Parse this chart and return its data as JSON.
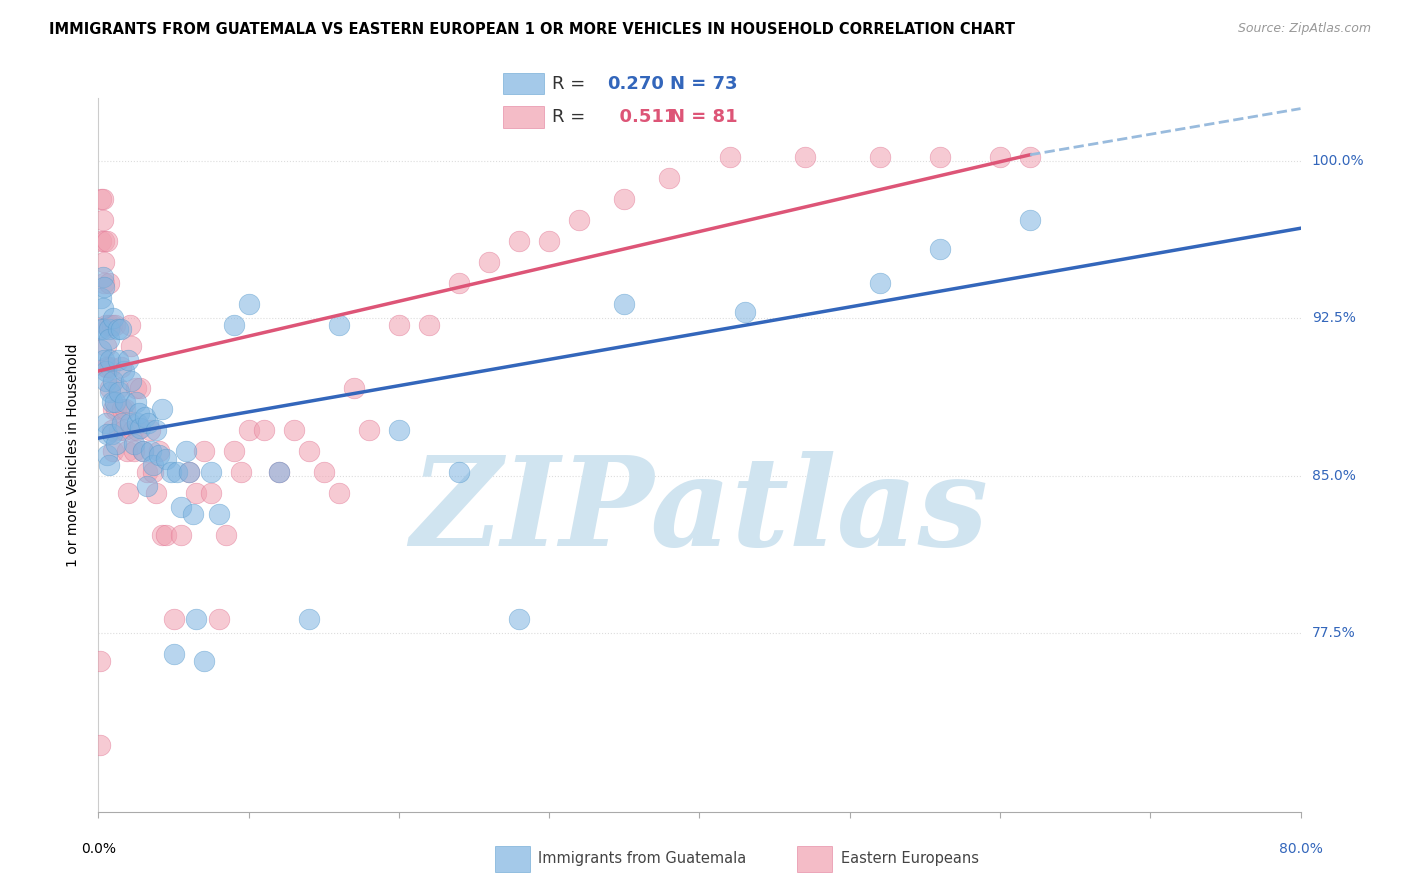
{
  "title": "IMMIGRANTS FROM GUATEMALA VS EASTERN EUROPEAN 1 OR MORE VEHICLES IN HOUSEHOLD CORRELATION CHART",
  "source": "Source: ZipAtlas.com",
  "ylabel": "1 or more Vehicles in Household",
  "xlim": [
    0.0,
    0.8
  ],
  "ylim": [
    0.69,
    1.03
  ],
  "blue_R": 0.27,
  "blue_N": 73,
  "pink_R": 0.511,
  "pink_N": 81,
  "blue_color": "#7EB3E0",
  "pink_color": "#F0A0B0",
  "blue_edge_color": "#5599CC",
  "pink_edge_color": "#E07090",
  "blue_trend_color": "#3366BB",
  "pink_trend_color": "#DD5577",
  "dashed_color": "#99BBDD",
  "blue_label": "Immigrants from Guatemala",
  "pink_label": "Eastern Europeans",
  "watermark": "ZIPatlas",
  "watermark_color": "#D0E4F0",
  "ytick_positions": [
    0.775,
    0.85,
    0.925,
    1.0
  ],
  "ytick_labels": [
    "77.5%",
    "85.0%",
    "92.5%",
    "100.0%"
  ],
  "xtick_positions": [
    0.0,
    0.1,
    0.2,
    0.3,
    0.4,
    0.5,
    0.6,
    0.7,
    0.8
  ],
  "blue_scatter_x": [
    0.001,
    0.002,
    0.002,
    0.003,
    0.003,
    0.003,
    0.004,
    0.004,
    0.005,
    0.005,
    0.005,
    0.006,
    0.006,
    0.007,
    0.007,
    0.007,
    0.008,
    0.008,
    0.009,
    0.009,
    0.01,
    0.01,
    0.011,
    0.012,
    0.013,
    0.013,
    0.014,
    0.015,
    0.016,
    0.017,
    0.018,
    0.02,
    0.021,
    0.022,
    0.024,
    0.025,
    0.026,
    0.027,
    0.028,
    0.03,
    0.031,
    0.032,
    0.033,
    0.035,
    0.036,
    0.038,
    0.04,
    0.042,
    0.045,
    0.048,
    0.05,
    0.052,
    0.055,
    0.058,
    0.06,
    0.063,
    0.065,
    0.07,
    0.075,
    0.08,
    0.09,
    0.1,
    0.12,
    0.14,
    0.16,
    0.2,
    0.24,
    0.28,
    0.35,
    0.43,
    0.52,
    0.56,
    0.62
  ],
  "blue_scatter_y": [
    0.92,
    0.935,
    0.91,
    0.945,
    0.93,
    0.92,
    0.94,
    0.905,
    0.9,
    0.895,
    0.875,
    0.87,
    0.86,
    0.92,
    0.915,
    0.855,
    0.905,
    0.89,
    0.885,
    0.87,
    0.925,
    0.895,
    0.885,
    0.865,
    0.92,
    0.905,
    0.89,
    0.92,
    0.875,
    0.9,
    0.885,
    0.905,
    0.875,
    0.895,
    0.865,
    0.885,
    0.875,
    0.88,
    0.873,
    0.862,
    0.878,
    0.845,
    0.875,
    0.862,
    0.855,
    0.872,
    0.86,
    0.882,
    0.858,
    0.852,
    0.765,
    0.852,
    0.835,
    0.862,
    0.852,
    0.832,
    0.782,
    0.762,
    0.852,
    0.832,
    0.922,
    0.932,
    0.852,
    0.782,
    0.922,
    0.872,
    0.852,
    0.782,
    0.932,
    0.928,
    0.942,
    0.958,
    0.972
  ],
  "pink_scatter_x": [
    0.001,
    0.001,
    0.002,
    0.002,
    0.003,
    0.003,
    0.004,
    0.004,
    0.004,
    0.005,
    0.005,
    0.005,
    0.006,
    0.006,
    0.007,
    0.007,
    0.008,
    0.008,
    0.009,
    0.009,
    0.01,
    0.01,
    0.011,
    0.012,
    0.013,
    0.014,
    0.015,
    0.016,
    0.017,
    0.018,
    0.019,
    0.02,
    0.021,
    0.022,
    0.023,
    0.024,
    0.025,
    0.026,
    0.028,
    0.03,
    0.032,
    0.034,
    0.036,
    0.038,
    0.04,
    0.042,
    0.045,
    0.05,
    0.055,
    0.06,
    0.065,
    0.07,
    0.075,
    0.08,
    0.085,
    0.09,
    0.095,
    0.1,
    0.11,
    0.12,
    0.13,
    0.14,
    0.15,
    0.16,
    0.17,
    0.18,
    0.2,
    0.22,
    0.24,
    0.26,
    0.28,
    0.3,
    0.32,
    0.35,
    0.38,
    0.42,
    0.47,
    0.52,
    0.56,
    0.6,
    0.62
  ],
  "pink_scatter_y": [
    0.722,
    0.762,
    0.962,
    0.982,
    0.972,
    0.982,
    0.962,
    0.952,
    0.942,
    0.922,
    0.912,
    0.902,
    0.962,
    0.902,
    0.942,
    0.922,
    0.892,
    0.902,
    0.922,
    0.872,
    0.882,
    0.862,
    0.922,
    0.882,
    0.892,
    0.872,
    0.902,
    0.882,
    0.872,
    0.882,
    0.862,
    0.842,
    0.922,
    0.912,
    0.872,
    0.862,
    0.892,
    0.872,
    0.892,
    0.862,
    0.852,
    0.872,
    0.852,
    0.842,
    0.862,
    0.822,
    0.822,
    0.782,
    0.822,
    0.852,
    0.842,
    0.862,
    0.842,
    0.782,
    0.822,
    0.862,
    0.852,
    0.872,
    0.872,
    0.852,
    0.872,
    0.862,
    0.852,
    0.842,
    0.892,
    0.872,
    0.922,
    0.922,
    0.942,
    0.952,
    0.962,
    0.962,
    0.972,
    0.982,
    0.992,
    1.002,
    1.002,
    1.002,
    1.002,
    1.002,
    1.002
  ],
  "blue_trend_x0": 0.0,
  "blue_trend_x1": 0.8,
  "blue_trend_y0": 0.868,
  "blue_trend_y1": 0.968,
  "pink_trend_x0": 0.0,
  "pink_trend_x1": 0.62,
  "pink_trend_y0": 0.9,
  "pink_trend_y1": 1.003,
  "dash_trend_x0": 0.62,
  "dash_trend_x1": 0.8,
  "dash_trend_y0": 1.003,
  "dash_trend_y1": 1.025,
  "background_color": "#FFFFFF",
  "grid_color": "#DDDDDD",
  "title_fontsize": 10.5,
  "source_fontsize": 9,
  "axis_label_fontsize": 10,
  "tick_fontsize": 10,
  "legend_fontsize": 13
}
